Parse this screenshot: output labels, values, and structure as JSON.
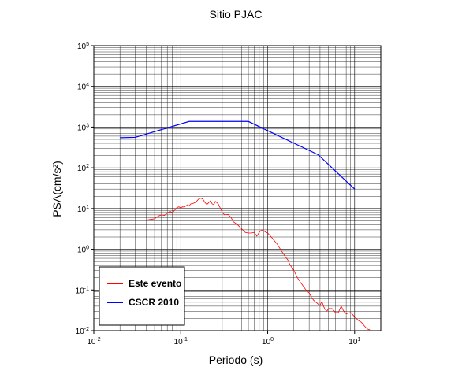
{
  "chart_data": {
    "type": "line",
    "title": "Sitio PJAC",
    "xlabel": "Periodo (s)",
    "ylabel": "PSA(cm/s²)",
    "xscale": "log",
    "yscale": "log",
    "xlim": [
      0.01,
      20
    ],
    "ylim": [
      0.01,
      100000
    ],
    "grid": true,
    "legend_position": "bottom-left",
    "x_ticks": [
      {
        "base": "10",
        "exp": "-2",
        "value": 0.01
      },
      {
        "base": "10",
        "exp": "-1",
        "value": 0.1
      },
      {
        "base": "10",
        "exp": "0",
        "value": 1
      },
      {
        "base": "10",
        "exp": "1",
        "value": 10
      }
    ],
    "y_ticks": [
      {
        "base": "10",
        "exp": "-2",
        "value": 0.01
      },
      {
        "base": "10",
        "exp": "-1",
        "value": 0.1
      },
      {
        "base": "10",
        "exp": "0",
        "value": 1
      },
      {
        "base": "10",
        "exp": "1",
        "value": 10
      },
      {
        "base": "10",
        "exp": "2",
        "value": 100
      },
      {
        "base": "10",
        "exp": "3",
        "value": 1000
      },
      {
        "base": "10",
        "exp": "4",
        "value": 10000
      },
      {
        "base": "10",
        "exp": "5",
        "value": 100000
      }
    ],
    "series": [
      {
        "name": "Este evento",
        "color": "#ff0000",
        "points": [
          [
            0.04,
            5.2
          ],
          [
            0.045,
            5.4
          ],
          [
            0.05,
            5.6
          ],
          [
            0.055,
            6.5
          ],
          [
            0.06,
            7.0
          ],
          [
            0.065,
            6.8
          ],
          [
            0.07,
            7.8
          ],
          [
            0.075,
            8.5
          ],
          [
            0.08,
            8.0
          ],
          [
            0.085,
            9.0
          ],
          [
            0.09,
            10.5
          ],
          [
            0.095,
            11.0
          ],
          [
            0.1,
            10.5
          ],
          [
            0.105,
            11.0
          ],
          [
            0.11,
            10.8
          ],
          [
            0.12,
            12.5
          ],
          [
            0.125,
            11.5
          ],
          [
            0.13,
            13.0
          ],
          [
            0.14,
            13.5
          ],
          [
            0.15,
            14.5
          ],
          [
            0.16,
            17.0
          ],
          [
            0.17,
            18.0
          ],
          [
            0.18,
            17.0
          ],
          [
            0.19,
            14.0
          ],
          [
            0.2,
            12.5
          ],
          [
            0.21,
            14.0
          ],
          [
            0.22,
            15.5
          ],
          [
            0.23,
            13.0
          ],
          [
            0.24,
            12.5
          ],
          [
            0.25,
            15.0
          ],
          [
            0.27,
            13.0
          ],
          [
            0.29,
            9.5
          ],
          [
            0.3,
            8.0
          ],
          [
            0.32,
            7.0
          ],
          [
            0.35,
            7.2
          ],
          [
            0.38,
            6.0
          ],
          [
            0.4,
            4.8
          ],
          [
            0.45,
            4.0
          ],
          [
            0.5,
            3.2
          ],
          [
            0.55,
            2.6
          ],
          [
            0.6,
            2.5
          ],
          [
            0.65,
            2.5
          ],
          [
            0.7,
            2.6
          ],
          [
            0.75,
            2.1
          ],
          [
            0.8,
            2.6
          ],
          [
            0.85,
            3.0
          ],
          [
            0.9,
            2.8
          ],
          [
            1.0,
            2.5
          ],
          [
            1.1,
            2.0
          ],
          [
            1.2,
            1.6
          ],
          [
            1.3,
            1.3
          ],
          [
            1.4,
            1.0
          ],
          [
            1.5,
            0.8
          ],
          [
            1.6,
            0.65
          ],
          [
            1.7,
            0.55
          ],
          [
            1.8,
            0.42
          ],
          [
            2.0,
            0.3
          ],
          [
            2.2,
            0.2
          ],
          [
            2.4,
            0.15
          ],
          [
            2.6,
            0.12
          ],
          [
            2.8,
            0.095
          ],
          [
            3.0,
            0.085
          ],
          [
            3.2,
            0.065
          ],
          [
            3.4,
            0.055
          ],
          [
            3.6,
            0.05
          ],
          [
            3.8,
            0.045
          ],
          [
            4.0,
            0.042
          ],
          [
            4.2,
            0.052
          ],
          [
            4.5,
            0.035
          ],
          [
            4.8,
            0.03
          ],
          [
            5.0,
            0.035
          ],
          [
            5.5,
            0.035
          ],
          [
            6.0,
            0.028
          ],
          [
            6.5,
            0.028
          ],
          [
            7.0,
            0.04
          ],
          [
            7.5,
            0.03
          ],
          [
            8.0,
            0.026
          ],
          [
            9.0,
            0.028
          ],
          [
            10.0,
            0.022
          ],
          [
            11.0,
            0.018
          ],
          [
            12.0,
            0.016
          ],
          [
            13.0,
            0.013
          ],
          [
            14.0,
            0.011
          ],
          [
            15.0,
            0.0105
          ]
        ]
      },
      {
        "name": "CSCR 2010",
        "color": "#0000ff",
        "points": [
          [
            0.02,
            550
          ],
          [
            0.03,
            560
          ],
          [
            0.125,
            1375
          ],
          [
            0.6,
            1375
          ],
          [
            3.8,
            210
          ],
          [
            10.0,
            30
          ]
        ]
      }
    ]
  }
}
